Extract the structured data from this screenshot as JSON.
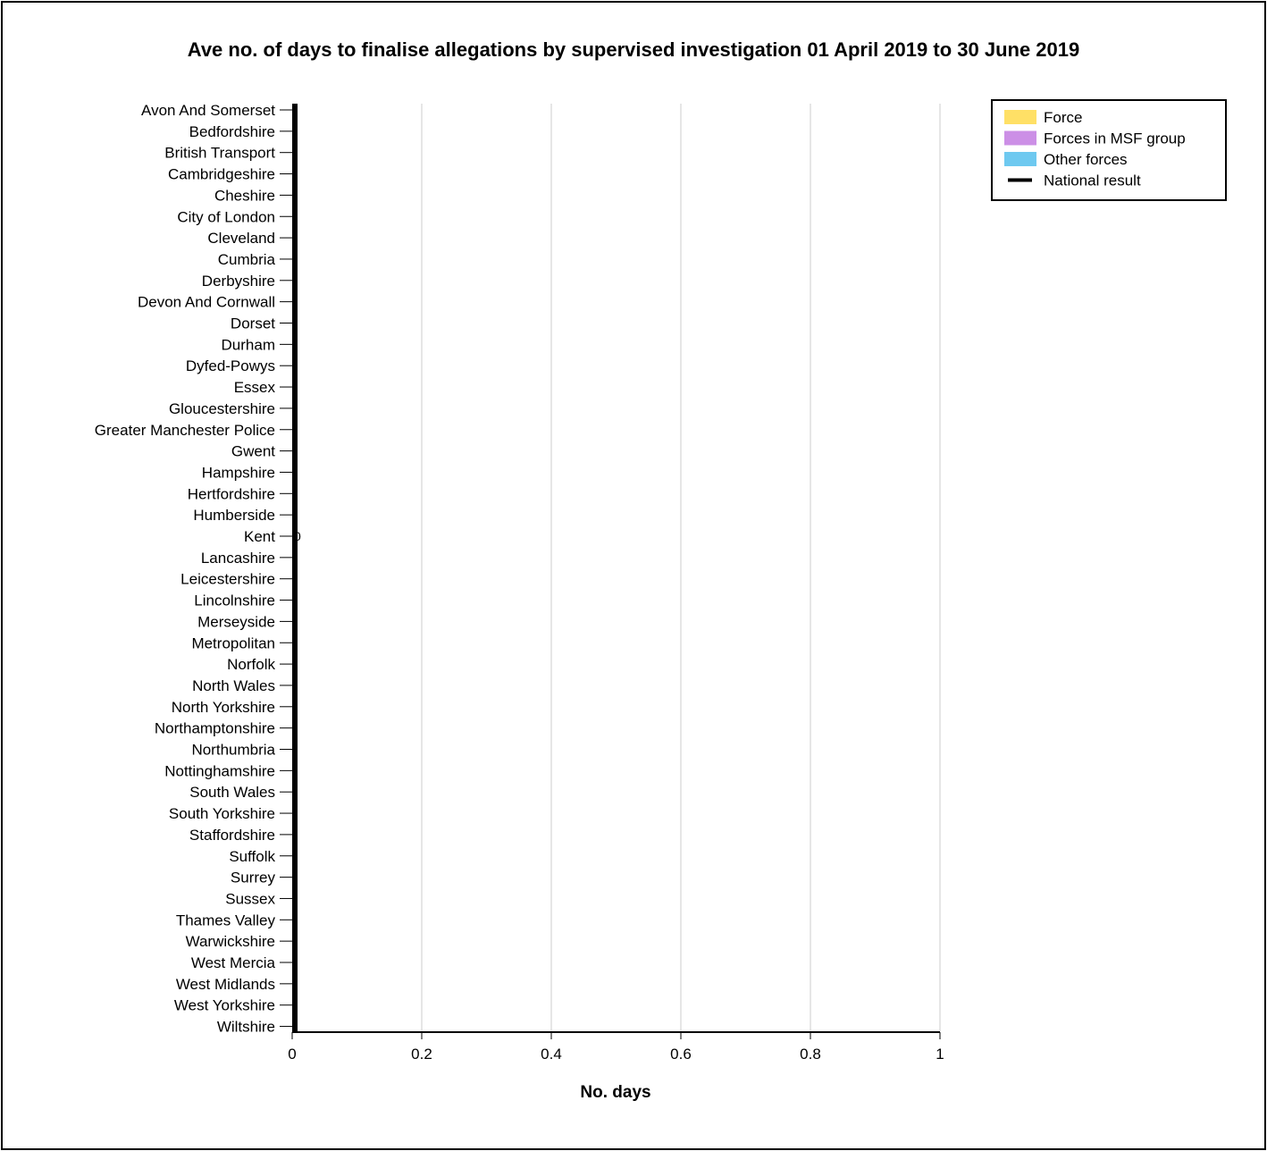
{
  "chart_data": {
    "type": "bar",
    "title": "Ave no. of days to finalise allegations by supervised investigation 01 April 2019 to 30 June 2019",
    "xlabel": "No. days",
    "ylabel": "",
    "orientation": "horizontal",
    "xlim": [
      0,
      1
    ],
    "xticks": [
      "0",
      "0.2",
      "0.4",
      "0.6",
      "0.8",
      "1"
    ],
    "xtick_values": [
      0,
      0.2,
      0.4,
      0.6,
      0.8,
      1
    ],
    "grid": true,
    "legend_position": "top-right",
    "categories": [
      "Avon And Somerset",
      "Bedfordshire",
      "British Transport",
      "Cambridgeshire",
      "Cheshire",
      "City of London",
      "Cleveland",
      "Cumbria",
      "Derbyshire",
      "Devon And Cornwall",
      "Dorset",
      "Durham",
      "Dyfed-Powys",
      "Essex",
      "Gloucestershire",
      "Greater Manchester Police",
      "Gwent",
      "Hampshire",
      "Hertfordshire",
      "Humberside",
      "Kent",
      "Lancashire",
      "Leicestershire",
      "Lincolnshire",
      "Merseyside",
      "Metropolitan",
      "Norfolk",
      "North Wales",
      "North Yorkshire",
      "Northamptonshire",
      "Northumbria",
      "Nottinghamshire",
      "South Wales",
      "South Yorkshire",
      "Staffordshire",
      "Suffolk",
      "Surrey",
      "Sussex",
      "Thames Valley",
      "Warwickshire",
      "West Mercia",
      "West Midlands",
      "West Yorkshire",
      "Wiltshire"
    ],
    "values": [
      null,
      null,
      null,
      null,
      null,
      null,
      null,
      null,
      null,
      null,
      null,
      null,
      null,
      null,
      null,
      null,
      null,
      null,
      null,
      null,
      0,
      null,
      null,
      null,
      null,
      null,
      null,
      null,
      null,
      null,
      null,
      null,
      null,
      null,
      null,
      null,
      null,
      null,
      null,
      null,
      null,
      null,
      null,
      null
    ],
    "data_labels": [
      {
        "category": "Kent",
        "text": "0"
      }
    ],
    "national_result": 0,
    "legend": [
      {
        "label": "Force",
        "color": "#FFE066",
        "marker": "box"
      },
      {
        "label": "Forces in MSF group",
        "color": "#CC8FE6",
        "marker": "box"
      },
      {
        "label": "Other forces",
        "color": "#6EC9F0",
        "marker": "box"
      },
      {
        "label": "National result",
        "color": "#000000",
        "marker": "line"
      }
    ],
    "colors": {
      "grid": "#e6e6e6",
      "axis": "#000000",
      "national_line": "#000000"
    }
  }
}
